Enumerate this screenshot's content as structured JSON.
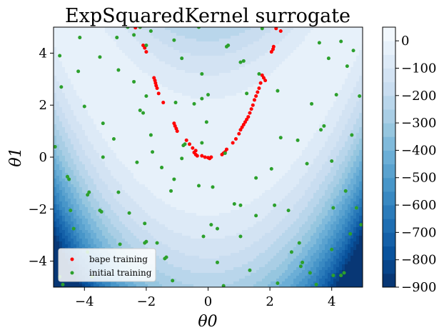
{
  "chart_data": {
    "type": "scatter",
    "title": "ExpSquaredKernel surrogate",
    "xlabel": "θ0",
    "ylabel": "θ1",
    "xlim": [
      -5,
      5
    ],
    "ylim": [
      -5,
      5
    ],
    "x_ticks": [
      -4,
      -2,
      0,
      2,
      4
    ],
    "y_ticks": [
      -4,
      -2,
      0,
      2,
      4
    ],
    "grid": false,
    "legend_position": "lower-left",
    "background": {
      "type": "filled-contour",
      "colormap": "Blues_r",
      "levels": [
        -900,
        -850,
        -800,
        -750,
        -700,
        -650,
        -600,
        -550,
        -500,
        -450,
        -400,
        -350,
        -300,
        -250,
        -200,
        -150,
        -100,
        -50,
        0,
        50
      ],
      "colorbar_ticks": [
        0,
        -100,
        -200,
        -300,
        -400,
        -500,
        -600,
        -700,
        -800,
        -900
      ]
    },
    "series": [
      {
        "name": "bape training",
        "color": "#ff0000",
        "points": [
          [
            -2.35,
            4.98
          ],
          [
            -2.2,
            5.0
          ],
          [
            -2.1,
            4.3
          ],
          [
            -2.05,
            4.2
          ],
          [
            -2.0,
            4.05
          ],
          [
            -1.75,
            3.05
          ],
          [
            -1.72,
            2.95
          ],
          [
            -1.7,
            2.85
          ],
          [
            -1.68,
            2.75
          ],
          [
            -1.65,
            2.65
          ],
          [
            -1.6,
            2.45
          ],
          [
            -1.45,
            2.1
          ],
          [
            -1.1,
            1.3
          ],
          [
            -1.07,
            1.2
          ],
          [
            -1.03,
            1.1
          ],
          [
            -1.0,
            1.0
          ],
          [
            -0.7,
            0.65
          ],
          [
            -0.6,
            0.5
          ],
          [
            -0.5,
            0.35
          ],
          [
            -0.4,
            0.25
          ],
          [
            -0.45,
            0.18
          ],
          [
            -0.4,
            0.1
          ],
          [
            -0.35,
            0.05
          ],
          [
            -0.2,
            0.05
          ],
          [
            -0.1,
            0.0
          ],
          [
            0.0,
            -0.02
          ],
          [
            0.05,
            -0.05
          ],
          [
            0.1,
            0.0
          ],
          [
            0.45,
            0.1
          ],
          [
            0.5,
            0.15
          ],
          [
            0.55,
            0.2
          ],
          [
            0.6,
            0.3
          ],
          [
            0.8,
            0.55
          ],
          [
            0.9,
            0.7
          ],
          [
            1.0,
            0.9
          ],
          [
            1.05,
            1.05
          ],
          [
            1.1,
            1.15
          ],
          [
            1.15,
            1.25
          ],
          [
            1.2,
            1.35
          ],
          [
            1.25,
            1.45
          ],
          [
            1.3,
            1.55
          ],
          [
            1.35,
            1.7
          ],
          [
            1.4,
            1.85
          ],
          [
            1.45,
            2.0
          ],
          [
            1.5,
            2.2
          ],
          [
            1.55,
            2.35
          ],
          [
            1.6,
            2.5
          ],
          [
            1.65,
            2.65
          ],
          [
            1.7,
            2.85
          ],
          [
            1.75,
            3.15
          ],
          [
            1.8,
            3.05
          ],
          [
            1.85,
            2.95
          ],
          [
            2.05,
            4.05
          ],
          [
            2.1,
            4.15
          ],
          [
            2.12,
            4.25
          ],
          [
            2.2,
            4.95
          ],
          [
            2.35,
            4.85
          ]
        ]
      },
      {
        "name": "initial training",
        "color": "#2ca02c",
        "points": [
          [
            -4.8,
            3.9
          ],
          [
            -4.75,
            2.7
          ],
          [
            -4.95,
            0.4
          ],
          [
            -4.55,
            -0.75
          ],
          [
            -4.5,
            -0.85
          ],
          [
            -4.45,
            -2.05
          ],
          [
            -4.35,
            -2.75
          ],
          [
            -4.8,
            -4.6
          ],
          [
            -4.7,
            -4.9
          ],
          [
            -4.15,
            4.6
          ],
          [
            -4.2,
            3.3
          ],
          [
            -4.0,
            1.95
          ],
          [
            -3.85,
            -1.35
          ],
          [
            -3.9,
            -1.45
          ],
          [
            -3.5,
            -2.05
          ],
          [
            -3.45,
            -2.1
          ],
          [
            -3.9,
            -3.65
          ],
          [
            -3.75,
            -4.6
          ],
          [
            -3.5,
            3.85
          ],
          [
            -3.4,
            1.3
          ],
          [
            -3.4,
            0.0
          ],
          [
            -3.05,
            0.7
          ],
          [
            -2.9,
            -1.35
          ],
          [
            -2.85,
            -3.35
          ],
          [
            -2.95,
            4.6
          ],
          [
            -2.6,
            5.0
          ],
          [
            -2.4,
            4.7
          ],
          [
            -2.9,
            3.35
          ],
          [
            -2.4,
            2.9
          ],
          [
            -2.55,
            -2.15
          ],
          [
            -2.0,
            -3.25
          ],
          [
            -2.05,
            -3.3
          ],
          [
            -2.3,
            -0.2
          ],
          [
            -2.2,
            5.0
          ],
          [
            -2.0,
            4.3
          ],
          [
            -2.2,
            1.8
          ],
          [
            -2.1,
            1.7
          ],
          [
            -2.0,
            2.35
          ],
          [
            -1.85,
            0.85
          ],
          [
            -1.8,
            0.2
          ],
          [
            -1.5,
            -0.4
          ],
          [
            -2.05,
            -2.55
          ],
          [
            -1.65,
            -3.3
          ],
          [
            -1.4,
            -3.9
          ],
          [
            -1.35,
            -3.85
          ],
          [
            -1.85,
            4.85
          ],
          [
            -1.1,
            4.5
          ],
          [
            -0.85,
            3.8
          ],
          [
            -1.05,
            2.1
          ],
          [
            -0.8,
            0.45
          ],
          [
            -0.75,
            0.5
          ],
          [
            -0.85,
            -0.05
          ],
          [
            -1.1,
            -0.85
          ],
          [
            -1.2,
            -1.3
          ],
          [
            -1.15,
            -4.75
          ],
          [
            -0.3,
            5.0
          ],
          [
            -0.2,
            3.2
          ],
          [
            -0.2,
            2.25
          ],
          [
            -0.45,
            2.05
          ],
          [
            -0.05,
            1.35
          ],
          [
            -0.2,
            0.55
          ],
          [
            -0.3,
            -1.1
          ],
          [
            -0.15,
            -3.05
          ],
          [
            0.1,
            -2.6
          ],
          [
            0.3,
            -2.75
          ],
          [
            0.3,
            -4.05
          ],
          [
            0.5,
            -4.95
          ],
          [
            0.0,
            2.4
          ],
          [
            0.15,
            -1.15
          ],
          [
            0.55,
            0.15
          ],
          [
            0.6,
            4.25
          ],
          [
            0.65,
            4.3
          ],
          [
            0.85,
            -1.8
          ],
          [
            1.05,
            3.65
          ],
          [
            1.15,
            3.7
          ],
          [
            1.25,
            2.45
          ],
          [
            1.05,
            -1.85
          ],
          [
            1.05,
            -3.05
          ],
          [
            1.55,
            -2.25
          ],
          [
            1.55,
            -0.8
          ],
          [
            1.65,
            3.2
          ],
          [
            1.75,
            4.95
          ],
          [
            1.35,
            -4.35
          ],
          [
            2.05,
            -0.45
          ],
          [
            2.15,
            -1.85
          ],
          [
            2.25,
            -4.85
          ],
          [
            2.35,
            0.75
          ],
          [
            2.25,
            2.55
          ],
          [
            2.6,
            -2.05
          ],
          [
            2.7,
            -3.65
          ],
          [
            2.9,
            0.65
          ],
          [
            2.95,
            -3.3
          ],
          [
            3.0,
            -4.2
          ],
          [
            3.05,
            -4.05
          ],
          [
            3.3,
            -4.45
          ],
          [
            3.5,
            -4.9
          ],
          [
            3.35,
            2.05
          ],
          [
            3.6,
            4.4
          ],
          [
            3.65,
            1.05
          ],
          [
            3.75,
            1.2
          ],
          [
            3.2,
            -0.25
          ],
          [
            3.9,
            3.8
          ],
          [
            4.0,
            -0.15
          ],
          [
            4.05,
            -1.95
          ],
          [
            4.15,
            2.4
          ],
          [
            4.0,
            -3.55
          ],
          [
            4.3,
            -4.55
          ],
          [
            4.4,
            -4.45
          ],
          [
            4.5,
            3.5
          ],
          [
            4.6,
            -2.95
          ],
          [
            4.65,
            0.85
          ],
          [
            4.7,
            4.1
          ],
          [
            4.8,
            -1.95
          ],
          [
            4.9,
            2.35
          ],
          [
            4.95,
            -2.6
          ],
          [
            4.45,
            -1.3
          ],
          [
            4.05,
            -4.55
          ],
          [
            4.3,
            4.45
          ]
        ]
      }
    ]
  }
}
